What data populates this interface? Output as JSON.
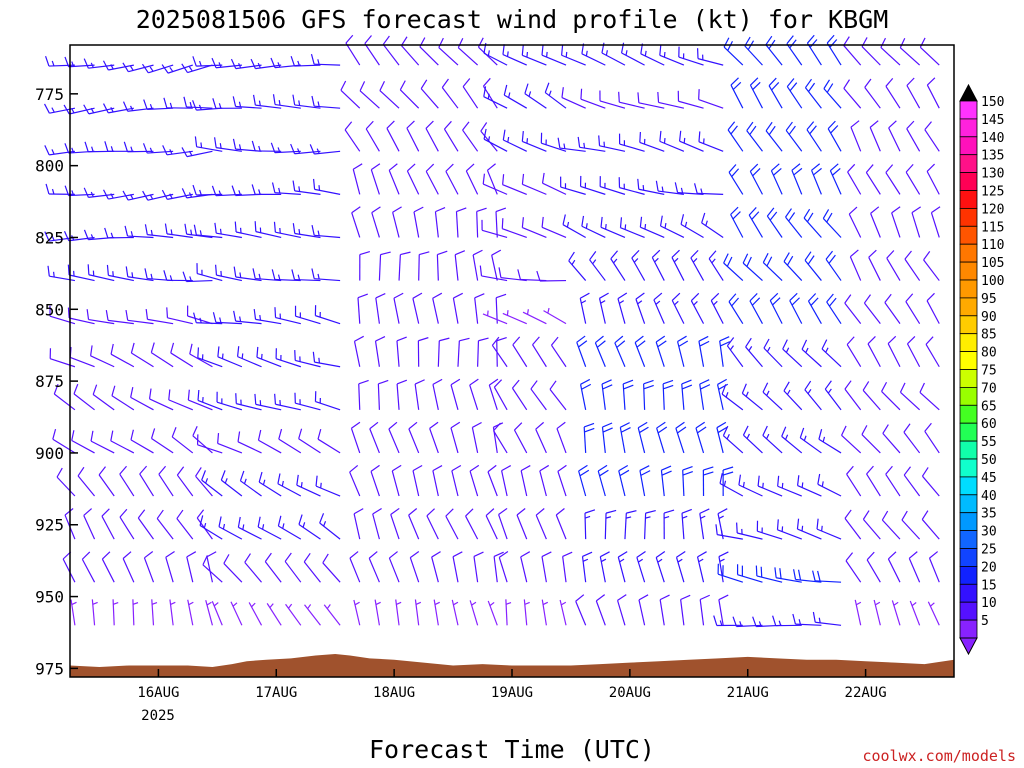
{
  "title": "2025081506 GFS forecast wind profile (kt) for KBGM",
  "credit": "coolwx.com/models",
  "chart_data": {
    "type": "wind-barb-time-height",
    "title": "2025081506 GFS forecast wind profile (kt) for KBGM",
    "xlabel": "Forecast Time (UTC)",
    "ylabel": "",
    "x_ticks": [
      "16AUG",
      "17AUG",
      "18AUG",
      "19AUG",
      "20AUG",
      "21AUG",
      "22AUG"
    ],
    "x_year": "2025",
    "y_ticks": [
      775,
      800,
      825,
      850,
      875,
      900,
      925,
      950,
      975
    ],
    "ylim_hpa": [
      978,
      758
    ],
    "xlim_hours_from_start": [
      0,
      180
    ],
    "day_start_hours": [
      18,
      42,
      66,
      90,
      114,
      138,
      162
    ],
    "colorbar": {
      "values": [
        150,
        145,
        140,
        135,
        130,
        125,
        120,
        115,
        110,
        105,
        100,
        95,
        90,
        85,
        80,
        75,
        70,
        65,
        60,
        55,
        50,
        45,
        40,
        35,
        30,
        25,
        20,
        15,
        10,
        5
      ],
      "colors": [
        "#ff33ff",
        "#ff22dd",
        "#ff11bb",
        "#ff1188",
        "#ff0055",
        "#ff1111",
        "#ff3300",
        "#ff5500",
        "#ff7700",
        "#ff8800",
        "#ff9900",
        "#ffaa00",
        "#ffcc00",
        "#ffee00",
        "#ffff00",
        "#ccff00",
        "#99ff00",
        "#44ff22",
        "#22ff55",
        "#11ffaa",
        "#11ffcc",
        "#00ddff",
        "#00bbff",
        "#0099ff",
        "#1166ff",
        "#1144ff",
        "#1122ff",
        "#3311ff",
        "#5511ff",
        "#8822ff"
      ]
    },
    "surface_pressure_hpa": [
      {
        "h": 0,
        "p": 974.0
      },
      {
        "h": 6,
        "p": 974.5
      },
      {
        "h": 12,
        "p": 974.0
      },
      {
        "h": 18,
        "p": 974.0
      },
      {
        "h": 24,
        "p": 974.0
      },
      {
        "h": 29,
        "p": 974.5
      },
      {
        "h": 33,
        "p": 973.5
      },
      {
        "h": 36,
        "p": 972.5
      },
      {
        "h": 40,
        "p": 972.0
      },
      {
        "h": 45,
        "p": 971.5
      },
      {
        "h": 50,
        "p": 970.5
      },
      {
        "h": 54,
        "p": 970.0
      },
      {
        "h": 57,
        "p": 970.5
      },
      {
        "h": 61,
        "p": 971.5
      },
      {
        "h": 66,
        "p": 972.0
      },
      {
        "h": 72,
        "p": 973.0
      },
      {
        "h": 78,
        "p": 974.0
      },
      {
        "h": 84,
        "p": 973.5
      },
      {
        "h": 90,
        "p": 974.0
      },
      {
        "h": 96,
        "p": 974.0
      },
      {
        "h": 102,
        "p": 974.0
      },
      {
        "h": 108,
        "p": 973.5
      },
      {
        "h": 114,
        "p": 973.0
      },
      {
        "h": 120,
        "p": 972.5
      },
      {
        "h": 126,
        "p": 972.0
      },
      {
        "h": 132,
        "p": 971.5
      },
      {
        "h": 138,
        "p": 971.0
      },
      {
        "h": 144,
        "p": 971.5
      },
      {
        "h": 150,
        "p": 972.0
      },
      {
        "h": 156,
        "p": 972.0
      },
      {
        "h": 162,
        "p": 972.5
      },
      {
        "h": 168,
        "p": 973.0
      },
      {
        "h": 174,
        "p": 973.5
      },
      {
        "h": 180,
        "p": 972.0
      }
    ],
    "wind_periods": [
      {
        "h0": 0,
        "h1": 30,
        "levels": [
          {
            "p": 765,
            "dir": 260,
            "spd": 15
          },
          {
            "p": 780,
            "dir": 265,
            "spd": 15
          },
          {
            "p": 795,
            "dir": 262,
            "spd": 15
          },
          {
            "p": 810,
            "dir": 265,
            "spd": 15
          },
          {
            "p": 825,
            "dir": 270,
            "spd": 15
          },
          {
            "p": 840,
            "dir": 275,
            "spd": 15
          },
          {
            "p": 855,
            "dir": 285,
            "spd": 10
          },
          {
            "p": 870,
            "dir": 295,
            "spd": 10
          },
          {
            "p": 885,
            "dir": 300,
            "spd": 10
          },
          {
            "p": 900,
            "dir": 305,
            "spd": 10
          },
          {
            "p": 915,
            "dir": 320,
            "spd": 10
          },
          {
            "p": 930,
            "dir": 330,
            "spd": 10
          },
          {
            "p": 945,
            "dir": 340,
            "spd": 10
          },
          {
            "p": 960,
            "dir": 350,
            "spd": 5
          }
        ]
      },
      {
        "h0": 30,
        "h1": 58,
        "levels": [
          {
            "p": 765,
            "dir": 270,
            "spd": 15
          },
          {
            "p": 780,
            "dir": 270,
            "spd": 15
          },
          {
            "p": 795,
            "dir": 272,
            "spd": 15
          },
          {
            "p": 810,
            "dir": 275,
            "spd": 15
          },
          {
            "p": 825,
            "dir": 275,
            "spd": 15
          },
          {
            "p": 840,
            "dir": 280,
            "spd": 15
          },
          {
            "p": 855,
            "dir": 280,
            "spd": 15
          },
          {
            "p": 870,
            "dir": 285,
            "spd": 15
          },
          {
            "p": 885,
            "dir": 290,
            "spd": 15
          },
          {
            "p": 900,
            "dir": 295,
            "spd": 10
          },
          {
            "p": 915,
            "dir": 300,
            "spd": 15
          },
          {
            "p": 930,
            "dir": 305,
            "spd": 15
          },
          {
            "p": 945,
            "dir": 315,
            "spd": 10
          },
          {
            "p": 960,
            "dir": 330,
            "spd": 5
          }
        ]
      },
      {
        "h0": 58,
        "h1": 88,
        "levels": [
          {
            "p": 765,
            "dir": 320,
            "spd": 10
          },
          {
            "p": 780,
            "dir": 320,
            "spd": 10
          },
          {
            "p": 795,
            "dir": 325,
            "spd": 10
          },
          {
            "p": 810,
            "dir": 340,
            "spd": 10
          },
          {
            "p": 825,
            "dir": 350,
            "spd": 10
          },
          {
            "p": 840,
            "dir": 355,
            "spd": 10
          },
          {
            "p": 855,
            "dir": 355,
            "spd": 10
          },
          {
            "p": 870,
            "dir": 355,
            "spd": 10
          },
          {
            "p": 885,
            "dir": 350,
            "spd": 10
          },
          {
            "p": 900,
            "dir": 345,
            "spd": 10
          },
          {
            "p": 915,
            "dir": 340,
            "spd": 10
          },
          {
            "p": 930,
            "dir": 340,
            "spd": 10
          },
          {
            "p": 945,
            "dir": 345,
            "spd": 10
          },
          {
            "p": 960,
            "dir": 345,
            "spd": 5
          }
        ]
      },
      {
        "h0": 88,
        "h1": 104,
        "levels": [
          {
            "p": 765,
            "dir": 300,
            "spd": 15
          },
          {
            "p": 780,
            "dir": 300,
            "spd": 15
          },
          {
            "p": 795,
            "dir": 290,
            "spd": 15
          },
          {
            "p": 810,
            "dir": 300,
            "spd": 10
          },
          {
            "p": 825,
            "dir": 285,
            "spd": 10
          },
          {
            "p": 840,
            "dir": 275,
            "spd": 10
          },
          {
            "p": 855,
            "dir": 300,
            "spd": 5
          },
          {
            "p": 870,
            "dir": 320,
            "spd": 10
          },
          {
            "p": 885,
            "dir": 330,
            "spd": 10
          },
          {
            "p": 900,
            "dir": 335,
            "spd": 10
          },
          {
            "p": 915,
            "dir": 340,
            "spd": 10
          },
          {
            "p": 930,
            "dir": 345,
            "spd": 10
          },
          {
            "p": 945,
            "dir": 345,
            "spd": 10
          },
          {
            "p": 960,
            "dir": 350,
            "spd": 5
          }
        ]
      },
      {
        "h0": 104,
        "h1": 136,
        "levels": [
          {
            "p": 765,
            "dir": 290,
            "spd": 15
          },
          {
            "p": 780,
            "dir": 290,
            "spd": 10
          },
          {
            "p": 795,
            "dir": 285,
            "spd": 15
          },
          {
            "p": 810,
            "dir": 280,
            "spd": 15
          },
          {
            "p": 825,
            "dir": 300,
            "spd": 15
          },
          {
            "p": 840,
            "dir": 325,
            "spd": 15
          },
          {
            "p": 855,
            "dir": 340,
            "spd": 15
          },
          {
            "p": 870,
            "dir": 345,
            "spd": 20
          },
          {
            "p": 885,
            "dir": 350,
            "spd": 20
          },
          {
            "p": 900,
            "dir": 350,
            "spd": 20
          },
          {
            "p": 915,
            "dir": 352,
            "spd": 20
          },
          {
            "p": 930,
            "dir": 355,
            "spd": 15
          },
          {
            "p": 945,
            "dir": 350,
            "spd": 15
          },
          {
            "p": 960,
            "dir": 345,
            "spd": 10
          }
        ]
      },
      {
        "h0": 136,
        "h1": 160,
        "levels": [
          {
            "p": 765,
            "dir": 320,
            "spd": 20
          },
          {
            "p": 780,
            "dir": 325,
            "spd": 20
          },
          {
            "p": 795,
            "dir": 330,
            "spd": 20
          },
          {
            "p": 810,
            "dir": 330,
            "spd": 20
          },
          {
            "p": 825,
            "dir": 325,
            "spd": 20
          },
          {
            "p": 840,
            "dir": 320,
            "spd": 20
          },
          {
            "p": 855,
            "dir": 325,
            "spd": 20
          },
          {
            "p": 870,
            "dir": 320,
            "spd": 15
          },
          {
            "p": 885,
            "dir": 315,
            "spd": 15
          },
          {
            "p": 900,
            "dir": 305,
            "spd": 15
          },
          {
            "p": 915,
            "dir": 300,
            "spd": 15
          },
          {
            "p": 930,
            "dir": 285,
            "spd": 15
          },
          {
            "p": 945,
            "dir": 280,
            "spd": 20
          },
          {
            "p": 960,
            "dir": 275,
            "spd": 15
          }
        ]
      },
      {
        "h0": 160,
        "h1": 180,
        "levels": [
          {
            "p": 765,
            "dir": 320,
            "spd": 10
          },
          {
            "p": 780,
            "dir": 325,
            "spd": 10
          },
          {
            "p": 795,
            "dir": 330,
            "spd": 10
          },
          {
            "p": 810,
            "dir": 335,
            "spd": 10
          },
          {
            "p": 825,
            "dir": 335,
            "spd": 10
          },
          {
            "p": 840,
            "dir": 330,
            "spd": 10
          },
          {
            "p": 855,
            "dir": 330,
            "spd": 10
          },
          {
            "p": 870,
            "dir": 325,
            "spd": 10
          },
          {
            "p": 885,
            "dir": 320,
            "spd": 10
          },
          {
            "p": 900,
            "dir": 320,
            "spd": 10
          },
          {
            "p": 915,
            "dir": 320,
            "spd": 10
          },
          {
            "p": 930,
            "dir": 325,
            "spd": 10
          },
          {
            "p": 945,
            "dir": 330,
            "spd": 10
          },
          {
            "p": 960,
            "dir": 340,
            "spd": 5
          }
        ]
      }
    ],
    "colors": {
      "terrain": "#a0522d",
      "frame": "#000000",
      "credit": "#cc2222"
    }
  }
}
